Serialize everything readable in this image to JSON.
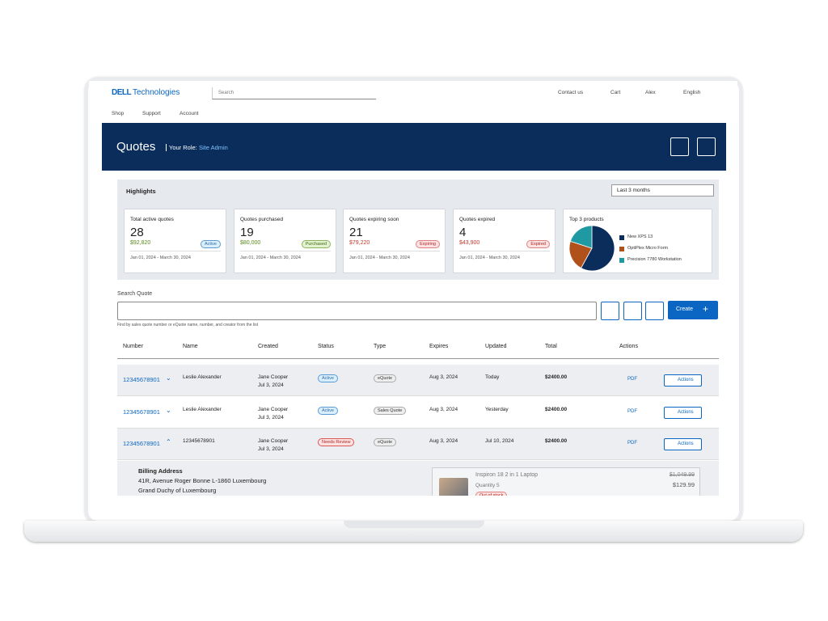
{
  "header": {
    "logo": {
      "brand": "DELL",
      "suffix": "Technologies"
    },
    "search_placeholder": "Search",
    "utility_nav": [
      "Contact us",
      "Cart",
      "Alex",
      "English"
    ],
    "nav": [
      "Shop",
      "Support",
      "Account"
    ]
  },
  "banner": {
    "title": "Quotes",
    "role_label": "Your Role:",
    "role": "Site Admin"
  },
  "highlights": {
    "title": "Highlights",
    "period": "Last 3 months",
    "cards": [
      {
        "title": "Total active quotes",
        "count": 28,
        "amount": "$92,820",
        "badge": "Active",
        "dates": "Jan 01, 2024 - March 30, 2024"
      },
      {
        "title": "Quotes purchased",
        "count": 19,
        "amount": "$80,000",
        "badge": "Purchased",
        "dates": "Jan 01, 2024 - March 30, 2024"
      },
      {
        "title": "Quotes expiring soon",
        "count": 21,
        "amount": "$79,220",
        "badge": "Expiring",
        "dates": "Jan 01, 2024 - March 30, 2024"
      },
      {
        "title": "Quotes expired",
        "count": 4,
        "amount": "$43,900",
        "badge": "Expired",
        "dates": "Jan 01, 2024 - March 30, 2024"
      }
    ],
    "top_products": {
      "title": "Top 3 products",
      "items": [
        {
          "name": "New XPS 13",
          "color": "#0b2d5b",
          "value": 58
        },
        {
          "name": "OptiPlex Micro Form",
          "color": "#b0501a",
          "value": 22
        },
        {
          "name": "Precision 7780 Workstation",
          "color": "#1f9aa3",
          "value": 20
        }
      ]
    }
  },
  "search": {
    "label": "Search Quote",
    "hint": "Find by sales quote number or eQuote name, number, and creator from the list",
    "create": "Create"
  },
  "table": {
    "columns": [
      "Number",
      "Name",
      "Created",
      "Status",
      "Type",
      "Expires",
      "Updated",
      "Total",
      "Actions"
    ],
    "rows": [
      {
        "number": "12345678901",
        "name": "Leslie Alexander",
        "creator": "Jane Cooper",
        "created": "Jul 3, 2024",
        "status": "Active",
        "type": "eQuote",
        "expires": "Aug 3, 2024",
        "updated": "Today",
        "total": "$2400.00",
        "pdf": "PDF",
        "actions": "Actions"
      },
      {
        "number": "12345678901",
        "name": "Leslie Alexander",
        "creator": "Jane Cooper",
        "created": "Jul 3, 2024",
        "status": "Active",
        "type": "Sales Quote",
        "expires": "Aug 3, 2024",
        "updated": "Yesterday",
        "total": "$2400.00",
        "pdf": "PDF",
        "actions": "Actions"
      },
      {
        "number": "12345678901",
        "name": "12345678901",
        "creator": "Jane Cooper",
        "created": "Jul 3, 2024",
        "status": "Needs Review",
        "type": "eQuote",
        "expires": "Aug 3, 2024",
        "updated": "Jul 10, 2024",
        "total": "$2400.00",
        "pdf": "PDF",
        "actions": "Actions"
      }
    ]
  },
  "details": {
    "billing_title": "Billing Address",
    "billing_lines": [
      "41R, Avenue Roger Bonne L-1860 Luxembourg",
      "Grand Duchy of Luxembourg"
    ],
    "product": {
      "name": "Inspiron 18 2 in 1 Laptop",
      "quantity": "Quantity 5",
      "stock": "Out of stock",
      "old_price": "$1,049.99",
      "price": "$129.99"
    }
  }
}
